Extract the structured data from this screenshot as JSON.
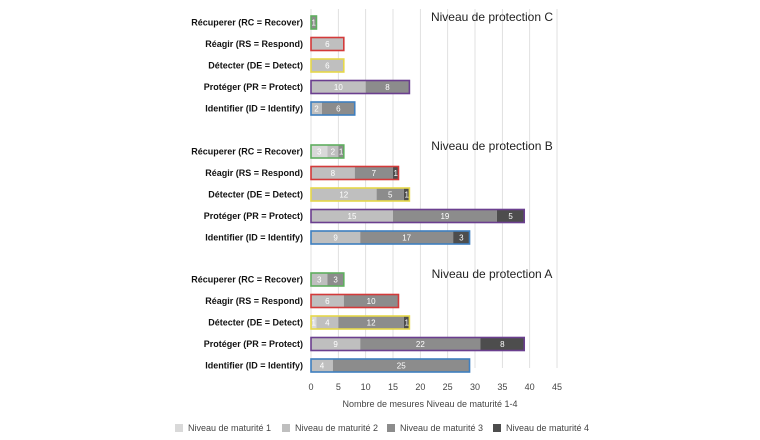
{
  "chart_data": {
    "type": "bar",
    "orientation": "horizontal",
    "stacked": true,
    "xlabel": "Nombre de mesures Niveau de maturité 1-4",
    "xlim": [
      0,
      45
    ],
    "xticks": [
      "0",
      "5",
      "10",
      "15",
      "20",
      "25",
      "30",
      "35",
      "40",
      "45"
    ],
    "grid": true,
    "legend_position": "bottom",
    "series_names": [
      "Niveau de maturité 1",
      "Niveau de maturité 2",
      "Niveau de maturité 3",
      "Niveau de maturité 4"
    ],
    "series_colors": [
      "#d9d9d9",
      "#bfbfbf",
      "#8c8c8c",
      "#4d4d4d"
    ],
    "function_border_colors": {
      "RC": "#5fae5f",
      "RS": "#d33a3a",
      "DE": "#e6d84a",
      "PR": "#6b3f8f",
      "ID": "#3f7fbf"
    },
    "groups": [
      {
        "title": "Niveau de protection C",
        "categories": [
          {
            "label": "Récuperer (RC = Recover)",
            "key": "RC",
            "values": [
              0,
              0,
              1,
              0
            ],
            "labels": [
              "",
              "",
              "1",
              ""
            ]
          },
          {
            "label": "Réagir (RS = Respond)",
            "key": "RS",
            "values": [
              0,
              6,
              0,
              0
            ],
            "labels": [
              "",
              "6",
              "",
              ""
            ]
          },
          {
            "label": "Détecter (DE = Detect)",
            "key": "DE",
            "values": [
              0,
              6,
              0,
              0
            ],
            "labels": [
              "",
              "6",
              "",
              ""
            ]
          },
          {
            "label": "Protéger (PR = Protect)",
            "key": "PR",
            "values": [
              0,
              10,
              8,
              0
            ],
            "labels": [
              "",
              "10",
              "8",
              ""
            ]
          },
          {
            "label": "Identifier (ID = Identify)",
            "key": "ID",
            "values": [
              0,
              2,
              6,
              0
            ],
            "labels": [
              "",
              "2",
              "6",
              ""
            ]
          }
        ]
      },
      {
        "title": "Niveau de protection B",
        "categories": [
          {
            "label": "Récuperer (RC = Recover)",
            "key": "RC",
            "values": [
              3,
              2,
              1,
              0
            ],
            "labels": [
              "3",
              "2",
              "1",
              ""
            ]
          },
          {
            "label": "Réagir (RS = Respond)",
            "key": "RS",
            "values": [
              0,
              8,
              7,
              1
            ],
            "labels": [
              "",
              "8",
              "7",
              "1"
            ]
          },
          {
            "label": "Détecter (DE = Detect)",
            "key": "DE",
            "values": [
              0,
              12,
              5,
              1
            ],
            "labels": [
              "",
              "12",
              "5",
              "1"
            ]
          },
          {
            "label": "Protéger (PR = Protect)",
            "key": "PR",
            "values": [
              0,
              15,
              19,
              5
            ],
            "labels": [
              "",
              "15",
              "19",
              "5"
            ]
          },
          {
            "label": "Identifier (ID = Identify)",
            "key": "ID",
            "values": [
              0,
              9,
              17,
              3
            ],
            "labels": [
              "",
              "9",
              "17",
              "3"
            ]
          }
        ]
      },
      {
        "title": "Niveau de protection A",
        "categories": [
          {
            "label": "Récuperer (RC = Recover)",
            "key": "RC",
            "values": [
              0,
              3,
              3,
              0
            ],
            "labels": [
              "",
              "3",
              "3",
              ""
            ]
          },
          {
            "label": "Réagir (RS = Respond)",
            "key": "RS",
            "values": [
              0,
              6,
              10,
              0
            ],
            "labels": [
              "",
              "6",
              "10",
              ""
            ]
          },
          {
            "label": "Détecter (DE = Detect)",
            "key": "DE",
            "values": [
              1,
              4,
              12,
              1
            ],
            "labels": [
              "1",
              "4",
              "12",
              "1"
            ]
          },
          {
            "label": "Protéger (PR = Protect)",
            "key": "PR",
            "values": [
              0,
              9,
              22,
              8
            ],
            "labels": [
              "",
              "9",
              "22",
              "8"
            ]
          },
          {
            "label": "Identifier (ID = Identify)",
            "key": "ID",
            "values": [
              0,
              4,
              25,
              0
            ],
            "labels": [
              "",
              "4",
              "25",
              ""
            ]
          }
        ]
      }
    ]
  }
}
